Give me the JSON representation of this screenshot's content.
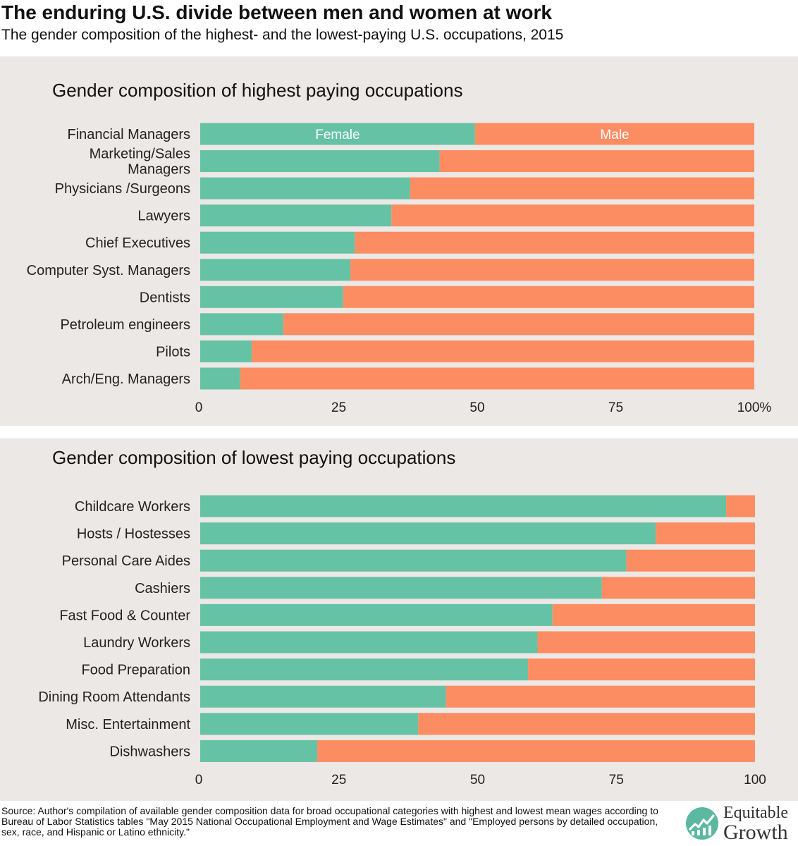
{
  "header": {
    "title": "The enduring U.S. divide between men and women at work",
    "subtitle": "The gender composition of the highest- and the lowest-paying U.S. occupations, 2015"
  },
  "colors": {
    "female": "#66c2a5",
    "male": "#fc8d62",
    "panel_bg": "#ece8e6"
  },
  "chart_data": [
    {
      "type": "bar",
      "stacked": true,
      "orientation": "horizontal",
      "title": "Gender composition of highest paying occupations",
      "categories": [
        "Financial Managers",
        "Marketing/Sales\nManagers",
        "Physicians /Surgeons",
        "Lawyers",
        "Chief Executives",
        "Computer Syst. Managers",
        "Dentists",
        "Petroleum engineers",
        "Pilots",
        "Arch/Eng. Managers"
      ],
      "series": [
        {
          "name": "Female",
          "values": [
            49.6,
            43.2,
            37.9,
            34.5,
            27.9,
            27.1,
            25.8,
            15.0,
            9.3,
            7.2
          ]
        },
        {
          "name": "Male",
          "values": [
            50.4,
            56.8,
            62.1,
            65.5,
            72.1,
            72.9,
            74.2,
            85.0,
            90.7,
            92.8
          ]
        }
      ],
      "xlim": [
        0,
        100
      ],
      "xticks": [
        "0",
        "25",
        "50",
        "75",
        "100%"
      ]
    },
    {
      "type": "bar",
      "stacked": true,
      "orientation": "horizontal",
      "title": "Gender composition of lowest paying occupations",
      "categories": [
        "Childcare Workers",
        "Hosts / Hostesses",
        "Personal Care Aides",
        "Cashiers",
        "Fast Food & Counter",
        "Laundry Workers",
        "Food Preparation",
        "Dining Room Attendants",
        "Misc. Entertainment",
        "Dishwashers"
      ],
      "series": [
        {
          "name": "Female",
          "values": [
            94.8,
            82.1,
            76.8,
            72.4,
            63.5,
            60.8,
            59.1,
            44.3,
            39.3,
            21.1
          ]
        },
        {
          "name": "Male",
          "values": [
            5.2,
            17.9,
            23.2,
            27.6,
            36.5,
            39.2,
            40.9,
            55.7,
            60.7,
            78.9
          ]
        }
      ],
      "xlim": [
        0,
        100
      ],
      "xticks": [
        "0",
        "25",
        "50",
        "75",
        "100"
      ]
    }
  ],
  "footer": {
    "source": "Source: Author's compilation of available gender composition data for broad occupational categories with highest and lowest mean wages according to Bureau of Labor Statistics tables \"May 2015 National Occupational Employment and Wage Estimates\" and \"Employed persons by detailed occupation, sex, race, and Hispanic or Latino ethnicity.\""
  },
  "logo": {
    "line1": "Equitable",
    "line2": "Growth",
    "icon": "equitable-growth-chart-icon"
  }
}
